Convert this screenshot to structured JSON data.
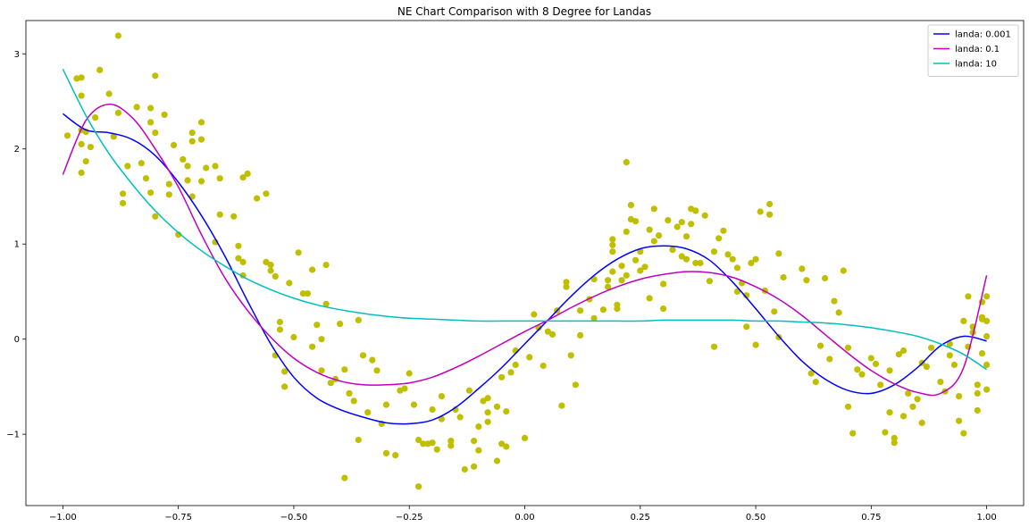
{
  "chart_data": {
    "type": "line",
    "title": "NE Chart Comparison with 8 Degree for Landas",
    "xlabel": "",
    "ylabel": "",
    "xlim": [
      -1.08,
      1.08
    ],
    "ylim": [
      -1.75,
      3.35
    ],
    "xticks": [
      -1.0,
      -0.75,
      -0.5,
      -0.25,
      0.0,
      0.25,
      0.5,
      0.75,
      1.0
    ],
    "xtick_labels": [
      "−1.00",
      "−0.75",
      "−0.50",
      "−0.25",
      "0.00",
      "0.25",
      "0.50",
      "0.75",
      "1.00"
    ],
    "yticks": [
      -1,
      0,
      1,
      2,
      3
    ],
    "ytick_labels": [
      "−1",
      "0",
      "1",
      "2",
      "3"
    ],
    "grid": false,
    "legend_position": "top-right",
    "series": [
      {
        "name": "landa: 0.001",
        "color": "#0000ff",
        "x": [
          -1.0,
          -0.95,
          -0.9,
          -0.85,
          -0.8,
          -0.75,
          -0.7,
          -0.65,
          -0.6,
          -0.55,
          -0.5,
          -0.45,
          -0.4,
          -0.35,
          -0.3,
          -0.25,
          -0.2,
          -0.15,
          -0.1,
          -0.05,
          0.0,
          0.05,
          0.1,
          0.15,
          0.2,
          0.25,
          0.3,
          0.35,
          0.4,
          0.45,
          0.5,
          0.55,
          0.6,
          0.65,
          0.7,
          0.75,
          0.8,
          0.85,
          0.9,
          0.95,
          1.0
        ],
        "y": [
          2.37,
          2.2,
          2.17,
          2.1,
          1.93,
          1.65,
          1.3,
          0.88,
          0.4,
          -0.05,
          -0.4,
          -0.62,
          -0.74,
          -0.82,
          -0.88,
          -0.89,
          -0.85,
          -0.72,
          -0.52,
          -0.3,
          -0.05,
          0.2,
          0.45,
          0.67,
          0.84,
          0.95,
          0.98,
          0.95,
          0.83,
          0.6,
          0.32,
          0.03,
          -0.23,
          -0.42,
          -0.54,
          -0.57,
          -0.48,
          -0.3,
          -0.07,
          0.03,
          -0.02
        ]
      },
      {
        "name": "landa: 0.1",
        "color": "#bf00bf",
        "x": [
          -1.0,
          -0.95,
          -0.9,
          -0.85,
          -0.8,
          -0.75,
          -0.7,
          -0.65,
          -0.6,
          -0.55,
          -0.5,
          -0.45,
          -0.4,
          -0.35,
          -0.3,
          -0.25,
          -0.2,
          -0.15,
          -0.1,
          -0.05,
          0.0,
          0.05,
          0.1,
          0.15,
          0.2,
          0.25,
          0.3,
          0.35,
          0.4,
          0.45,
          0.5,
          0.55,
          0.6,
          0.65,
          0.7,
          0.75,
          0.8,
          0.85,
          0.9,
          0.95,
          1.0
        ],
        "y": [
          1.73,
          2.3,
          2.47,
          2.33,
          2.0,
          1.6,
          1.1,
          0.65,
          0.3,
          0.02,
          -0.2,
          -0.35,
          -0.44,
          -0.48,
          -0.48,
          -0.46,
          -0.4,
          -0.3,
          -0.18,
          -0.05,
          0.08,
          0.2,
          0.33,
          0.45,
          0.55,
          0.63,
          0.68,
          0.71,
          0.7,
          0.65,
          0.55,
          0.42,
          0.25,
          0.05,
          -0.15,
          -0.33,
          -0.47,
          -0.56,
          -0.57,
          -0.3,
          0.67
        ]
      },
      {
        "name": "landa: 10",
        "color": "#00bfbf",
        "x": [
          -1.0,
          -0.95,
          -0.9,
          -0.85,
          -0.8,
          -0.75,
          -0.7,
          -0.65,
          -0.6,
          -0.55,
          -0.5,
          -0.45,
          -0.4,
          -0.35,
          -0.3,
          -0.25,
          -0.2,
          -0.15,
          -0.1,
          -0.05,
          0.0,
          0.05,
          0.1,
          0.15,
          0.2,
          0.25,
          0.3,
          0.35,
          0.4,
          0.45,
          0.5,
          0.55,
          0.6,
          0.65,
          0.7,
          0.75,
          0.8,
          0.85,
          0.9,
          0.95,
          1.0
        ],
        "y": [
          2.84,
          2.35,
          1.95,
          1.63,
          1.35,
          1.12,
          0.93,
          0.77,
          0.63,
          0.52,
          0.43,
          0.36,
          0.31,
          0.27,
          0.24,
          0.22,
          0.21,
          0.2,
          0.19,
          0.19,
          0.19,
          0.19,
          0.19,
          0.19,
          0.19,
          0.19,
          0.2,
          0.2,
          0.2,
          0.2,
          0.19,
          0.19,
          0.18,
          0.17,
          0.15,
          0.12,
          0.08,
          0.03,
          -0.05,
          -0.16,
          -0.32
        ]
      }
    ],
    "scatter": {
      "color": "#bfbf00",
      "points": [
        [
          -0.99,
          2.14
        ],
        [
          -0.97,
          2.74
        ],
        [
          -0.96,
          2.75
        ],
        [
          -0.96,
          2.56
        ],
        [
          -0.96,
          2.2
        ],
        [
          -0.95,
          2.18
        ],
        [
          -0.96,
          2.05
        ],
        [
          -0.95,
          1.87
        ],
        [
          -0.96,
          1.75
        ],
        [
          -0.94,
          2.02
        ],
        [
          -0.93,
          2.33
        ],
        [
          -0.92,
          2.83
        ],
        [
          -0.9,
          2.58
        ],
        [
          -0.89,
          2.13
        ],
        [
          -0.88,
          3.19
        ],
        [
          -0.88,
          2.38
        ],
        [
          -0.87,
          1.53
        ],
        [
          -0.87,
          1.43
        ],
        [
          -0.86,
          1.82
        ],
        [
          -0.84,
          2.44
        ],
        [
          -0.83,
          1.85
        ],
        [
          -0.82,
          1.69
        ],
        [
          -0.81,
          2.43
        ],
        [
          -0.81,
          2.28
        ],
        [
          -0.8,
          2.77
        ],
        [
          -0.8,
          2.17
        ],
        [
          -0.81,
          1.54
        ],
        [
          -0.8,
          1.29
        ],
        [
          -0.78,
          2.36
        ],
        [
          -0.77,
          1.63
        ],
        [
          -0.77,
          1.52
        ],
        [
          -0.76,
          2.04
        ],
        [
          -0.75,
          1.1
        ],
        [
          -0.74,
          1.89
        ],
        [
          -0.73,
          1.82
        ],
        [
          -0.73,
          1.67
        ],
        [
          -0.72,
          2.08
        ],
        [
          -0.72,
          2.17
        ],
        [
          -0.72,
          1.5
        ],
        [
          -0.7,
          2.28
        ],
        [
          -0.7,
          2.1
        ],
        [
          -0.7,
          1.66
        ],
        [
          -0.69,
          1.8
        ],
        [
          -0.67,
          1.82
        ],
        [
          -0.67,
          1.02
        ],
        [
          -0.66,
          1.31
        ],
        [
          -0.66,
          1.69
        ],
        [
          -0.63,
          1.29
        ],
        [
          -0.62,
          0.98
        ],
        [
          -0.62,
          0.85
        ],
        [
          -0.61,
          0.81
        ],
        [
          -0.61,
          0.67
        ],
        [
          -0.61,
          1.7
        ],
        [
          -0.6,
          1.74
        ],
        [
          -0.58,
          1.48
        ],
        [
          -0.56,
          1.53
        ],
        [
          -0.56,
          0.81
        ],
        [
          -0.55,
          0.78
        ],
        [
          -0.55,
          0.72
        ],
        [
          -0.54,
          0.66
        ],
        [
          -0.53,
          0.18
        ],
        [
          -0.53,
          0.1
        ],
        [
          -0.52,
          -0.5
        ],
        [
          -0.54,
          -0.17
        ],
        [
          -0.52,
          -0.34
        ],
        [
          -0.51,
          0.59
        ],
        [
          -0.5,
          0.02
        ],
        [
          -0.49,
          0.91
        ],
        [
          -0.48,
          0.48
        ],
        [
          -0.47,
          0.48
        ],
        [
          -0.46,
          -0.08
        ],
        [
          -0.46,
          0.73
        ],
        [
          -0.45,
          0.15
        ],
        [
          -0.44,
          0.0
        ],
        [
          -0.43,
          0.37
        ],
        [
          -0.44,
          -0.33
        ],
        [
          -0.43,
          0.78
        ],
        [
          -0.42,
          -0.46
        ],
        [
          -0.41,
          -0.42
        ],
        [
          -0.4,
          0.16
        ],
        [
          -0.39,
          -0.32
        ],
        [
          -0.39,
          -1.46
        ],
        [
          -0.38,
          -0.57
        ],
        [
          -0.37,
          -0.65
        ],
        [
          -0.36,
          -1.06
        ],
        [
          -0.36,
          0.2
        ],
        [
          -0.35,
          -0.17
        ],
        [
          -0.34,
          -0.77
        ],
        [
          -0.33,
          -0.22
        ],
        [
          -0.32,
          -0.33
        ],
        [
          -0.31,
          -0.89
        ],
        [
          -0.3,
          -0.69
        ],
        [
          -0.3,
          -1.2
        ],
        [
          -0.28,
          -1.22
        ],
        [
          -0.27,
          -0.54
        ],
        [
          -0.26,
          -0.52
        ],
        [
          -0.25,
          -0.36
        ],
        [
          -0.24,
          -0.69
        ],
        [
          -0.23,
          -1.55
        ],
        [
          -0.23,
          -1.06
        ],
        [
          -0.22,
          -1.1
        ],
        [
          -0.21,
          -1.1
        ],
        [
          -0.2,
          -1.09
        ],
        [
          -0.2,
          -0.74
        ],
        [
          -0.19,
          -1.16
        ],
        [
          -0.18,
          -0.6
        ],
        [
          -0.18,
          -0.84
        ],
        [
          -0.16,
          -1.07
        ],
        [
          -0.16,
          -1.12
        ],
        [
          -0.15,
          -0.74
        ],
        [
          -0.14,
          -0.82
        ],
        [
          -0.13,
          -1.37
        ],
        [
          -0.12,
          -0.54
        ],
        [
          -0.11,
          -1.07
        ],
        [
          -0.11,
          -1.34
        ],
        [
          -0.1,
          -1.17
        ],
        [
          -0.1,
          -0.92
        ],
        [
          -0.09,
          -0.65
        ],
        [
          -0.08,
          -0.62
        ],
        [
          -0.08,
          -0.77
        ],
        [
          -0.08,
          -0.87
        ],
        [
          -0.06,
          -0.71
        ],
        [
          -0.06,
          -1.28
        ],
        [
          -0.05,
          -0.4
        ],
        [
          -0.05,
          -1.1
        ],
        [
          -0.04,
          -1.13
        ],
        [
          -0.04,
          -0.76
        ],
        [
          -0.03,
          -0.35
        ],
        [
          -0.02,
          -0.27
        ],
        [
          -0.02,
          -0.12
        ],
        [
          0.0,
          -1.04
        ],
        [
          0.01,
          -0.19
        ],
        [
          0.02,
          0.26
        ],
        [
          0.03,
          0.12
        ],
        [
          0.04,
          -0.28
        ],
        [
          0.05,
          0.08
        ],
        [
          0.06,
          0.05
        ],
        [
          0.07,
          0.3
        ],
        [
          0.08,
          -0.7
        ],
        [
          0.09,
          0.55
        ],
        [
          0.09,
          0.6
        ],
        [
          0.1,
          -0.17
        ],
        [
          0.11,
          -0.48
        ],
        [
          0.12,
          0.04
        ],
        [
          0.12,
          0.3
        ],
        [
          0.14,
          0.42
        ],
        [
          0.15,
          0.63
        ],
        [
          0.15,
          0.22
        ],
        [
          0.17,
          0.31
        ],
        [
          0.18,
          0.55
        ],
        [
          0.18,
          0.62
        ],
        [
          0.19,
          0.71
        ],
        [
          0.19,
          0.92
        ],
        [
          0.19,
          0.99
        ],
        [
          0.19,
          1.05
        ],
        [
          0.2,
          0.36
        ],
        [
          0.2,
          0.32
        ],
        [
          0.21,
          0.62
        ],
        [
          0.21,
          0.77
        ],
        [
          0.22,
          1.13
        ],
        [
          0.22,
          1.86
        ],
        [
          0.22,
          0.67
        ],
        [
          0.23,
          1.41
        ],
        [
          0.23,
          1.26
        ],
        [
          0.24,
          1.24
        ],
        [
          0.24,
          0.83
        ],
        [
          0.25,
          0.92
        ],
        [
          0.25,
          0.72
        ],
        [
          0.26,
          0.76
        ],
        [
          0.27,
          1.15
        ],
        [
          0.27,
          0.43
        ],
        [
          0.28,
          1.37
        ],
        [
          0.28,
          1.03
        ],
        [
          0.29,
          1.09
        ],
        [
          0.3,
          0.32
        ],
        [
          0.3,
          0.58
        ],
        [
          0.31,
          1.25
        ],
        [
          0.32,
          0.94
        ],
        [
          0.33,
          1.18
        ],
        [
          0.34,
          1.23
        ],
        [
          0.34,
          0.87
        ],
        [
          0.35,
          0.84
        ],
        [
          0.35,
          1.08
        ],
        [
          0.36,
          1.21
        ],
        [
          0.36,
          1.37
        ],
        [
          0.37,
          0.8
        ],
        [
          0.37,
          1.35
        ],
        [
          0.38,
          0.8
        ],
        [
          0.39,
          1.3
        ],
        [
          0.4,
          0.61
        ],
        [
          0.41,
          0.92
        ],
        [
          0.41,
          -0.08
        ],
        [
          0.42,
          1.06
        ],
        [
          0.43,
          1.14
        ],
        [
          0.44,
          0.89
        ],
        [
          0.45,
          0.84
        ],
        [
          0.46,
          0.5
        ],
        [
          0.46,
          0.75
        ],
        [
          0.47,
          0.59
        ],
        [
          0.48,
          0.13
        ],
        [
          0.48,
          0.46
        ],
        [
          0.49,
          0.8
        ],
        [
          0.5,
          -0.06
        ],
        [
          0.5,
          0.84
        ],
        [
          0.51,
          1.34
        ],
        [
          0.52,
          0.51
        ],
        [
          0.53,
          1.42
        ],
        [
          0.53,
          1.31
        ],
        [
          0.54,
          0.29
        ],
        [
          0.55,
          0.9
        ],
        [
          0.55,
          0.02
        ],
        [
          0.56,
          0.65
        ],
        [
          0.6,
          0.74
        ],
        [
          0.61,
          0.62
        ],
        [
          0.62,
          -0.36
        ],
        [
          0.63,
          -0.45
        ],
        [
          0.64,
          -0.07
        ],
        [
          0.65,
          0.64
        ],
        [
          0.66,
          -0.21
        ],
        [
          0.67,
          0.4
        ],
        [
          0.68,
          0.28
        ],
        [
          0.69,
          0.72
        ],
        [
          0.7,
          -0.09
        ],
        [
          0.7,
          -0.71
        ],
        [
          0.71,
          -0.99
        ],
        [
          0.72,
          -0.32
        ],
        [
          0.73,
          -0.37
        ],
        [
          0.75,
          -0.2
        ],
        [
          0.76,
          -0.26
        ],
        [
          0.77,
          -0.48
        ],
        [
          0.78,
          -0.98
        ],
        [
          0.79,
          -0.77
        ],
        [
          0.79,
          -0.33
        ],
        [
          0.8,
          -1.04
        ],
        [
          0.8,
          -1.09
        ],
        [
          0.81,
          -0.16
        ],
        [
          0.82,
          -0.12
        ],
        [
          0.82,
          -0.81
        ],
        [
          0.83,
          -0.57
        ],
        [
          0.84,
          -0.71
        ],
        [
          0.85,
          -0.63
        ],
        [
          0.86,
          -0.88
        ],
        [
          0.86,
          -0.25
        ],
        [
          0.87,
          -0.29
        ],
        [
          0.88,
          -0.09
        ],
        [
          0.9,
          -0.45
        ],
        [
          0.91,
          -0.55
        ],
        [
          0.92,
          -0.05
        ],
        [
          0.92,
          -0.17
        ],
        [
          0.93,
          -0.27
        ],
        [
          0.94,
          -0.86
        ],
        [
          0.94,
          -0.6
        ],
        [
          0.95,
          0.19
        ],
        [
          0.95,
          -0.99
        ],
        [
          0.96,
          0.45
        ],
        [
          0.96,
          -0.08
        ],
        [
          0.97,
          0.13
        ],
        [
          0.97,
          0.07
        ],
        [
          0.98,
          -0.48
        ],
        [
          0.98,
          -0.57
        ],
        [
          0.99,
          0.23
        ],
        [
          0.99,
          0.21
        ],
        [
          0.99,
          -0.15
        ],
        [
          1.0,
          0.19
        ],
        [
          1.0,
          0.03
        ],
        [
          1.0,
          -0.27
        ],
        [
          1.0,
          0.45
        ],
        [
          1.0,
          -0.53
        ],
        [
          0.98,
          -0.75
        ],
        [
          0.99,
          0.39
        ]
      ]
    }
  }
}
